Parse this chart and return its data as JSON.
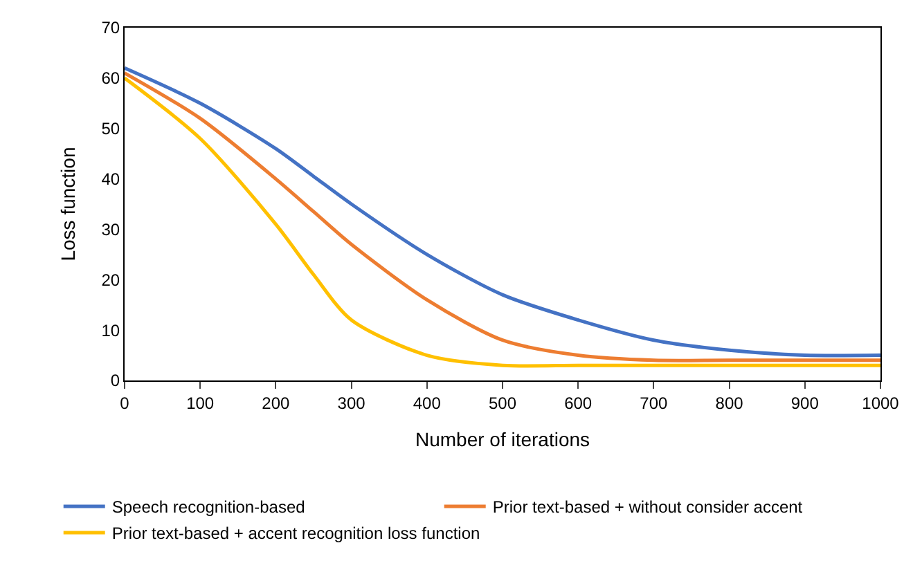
{
  "chart_data": {
    "type": "line",
    "xlabel": "Number of iterations",
    "ylabel": "Loss function",
    "x": [
      0,
      100,
      200,
      250,
      300,
      400,
      500,
      600,
      700,
      800,
      900,
      1000
    ],
    "series": [
      {
        "name": "Speech recognition-based",
        "color": "#4472c4",
        "values": [
          62,
          55,
          46,
          40.5,
          35,
          25,
          17,
          12,
          8,
          6,
          5,
          5
        ]
      },
      {
        "name": "Prior text-based + without consider accent",
        "color": "#ed7d31",
        "values": [
          61,
          52,
          40,
          33.5,
          27,
          16,
          8,
          5,
          4,
          4,
          4,
          4
        ]
      },
      {
        "name": "Prior text-based + accent recognition loss function",
        "color": "#ffc000",
        "values": [
          60,
          48,
          31,
          21,
          12,
          5,
          3,
          3,
          3,
          3,
          3,
          3
        ]
      }
    ],
    "xlim": [
      0,
      1000
    ],
    "xticks": [
      0,
      100,
      200,
      300,
      400,
      500,
      600,
      700,
      800,
      900,
      1000
    ],
    "ylim": [
      0,
      70
    ],
    "yticks": [
      0,
      10,
      20,
      30,
      40,
      50,
      60,
      70
    ],
    "legend": "bottom",
    "marker": "none",
    "line_style": "solid"
  }
}
